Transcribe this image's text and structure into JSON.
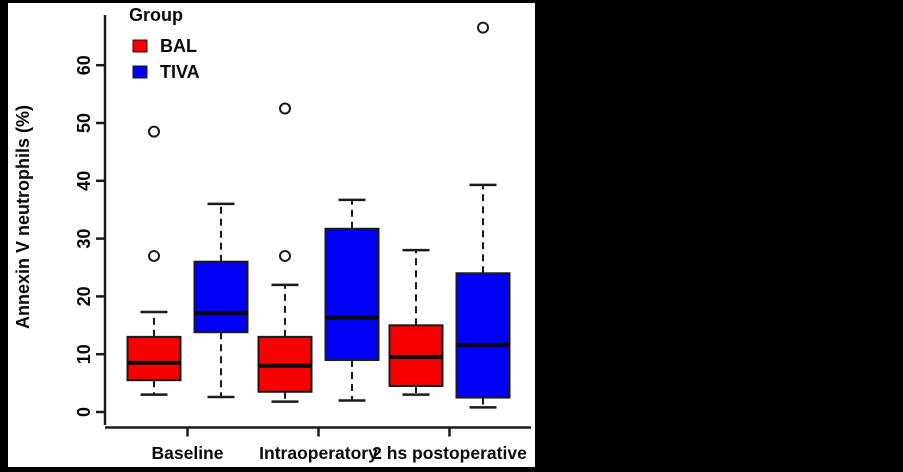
{
  "figure": {
    "background_color": "#000000",
    "panel_color": "#ffffff"
  },
  "chart_data": {
    "type": "boxplot",
    "title": "",
    "xlabel": "",
    "ylabel": "Annexin V neutrophils (%)",
    "ylim": [
      0,
      68
    ],
    "yticks": [
      "0",
      "10",
      "20",
      "30",
      "40",
      "50",
      "60"
    ],
    "ytick_values": [
      0,
      10,
      20,
      30,
      40,
      50,
      60
    ],
    "grid": "off",
    "categories": [
      "Baseline",
      "Intraoperatory",
      "2 hs postoperative"
    ],
    "legend": {
      "title": "Group",
      "position": "top-left",
      "entries": [
        {
          "label": "BAL",
          "color": "#f80000"
        },
        {
          "label": "TIVA",
          "color": "#0000f8"
        }
      ]
    },
    "series": [
      {
        "name": "BAL",
        "color": "#f80000",
        "boxes": [
          {
            "category": "Baseline",
            "whisker_low": 3.0,
            "q1": 5.5,
            "median": 8.5,
            "q3": 13.0,
            "whisker_high": 17.3,
            "outliers": [
              27.0,
              48.5
            ]
          },
          {
            "category": "Intraoperatory",
            "whisker_low": 1.8,
            "q1": 3.5,
            "median": 8.0,
            "q3": 13.0,
            "whisker_high": 22.0,
            "outliers": [
              27.0,
              52.5
            ]
          },
          {
            "category": "2 hs postoperative",
            "whisker_low": 3.0,
            "q1": 4.5,
            "median": 9.5,
            "q3": 15.0,
            "whisker_high": 28.0,
            "outliers": []
          }
        ]
      },
      {
        "name": "TIVA",
        "color": "#0000f8",
        "boxes": [
          {
            "category": "Baseline",
            "whisker_low": 2.6,
            "q1": 13.8,
            "median": 17.1,
            "q3": 26.0,
            "whisker_high": 36.0,
            "outliers": []
          },
          {
            "category": "Intraoperatory",
            "whisker_low": 2.0,
            "q1": 9.0,
            "median": 16.3,
            "q3": 31.7,
            "whisker_high": 36.7,
            "outliers": []
          },
          {
            "category": "2 hs postoperative",
            "whisker_low": 0.8,
            "q1": 2.5,
            "median": 11.6,
            "q3": 24.0,
            "whisker_high": 39.3,
            "outliers": [
              66.5
            ]
          }
        ]
      }
    ]
  }
}
